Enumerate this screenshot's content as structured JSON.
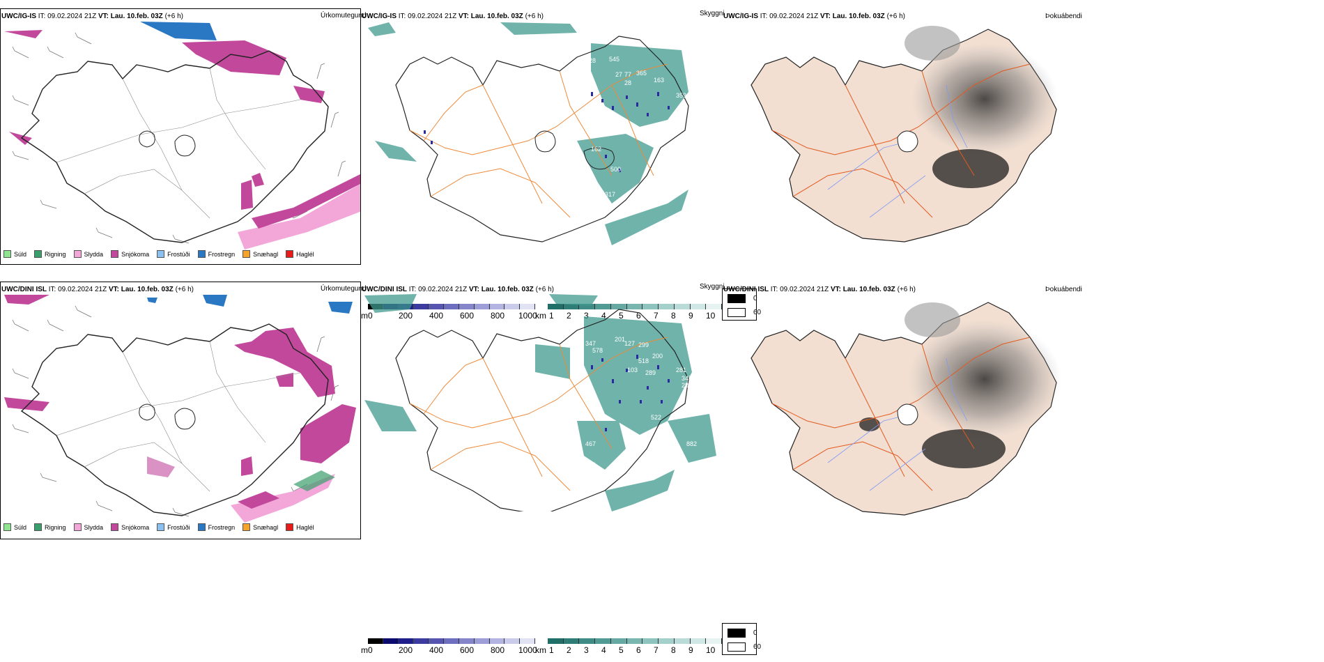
{
  "rows": [
    {
      "header": {
        "model": "UWC/IG-IS",
        "it": "IT: 09.02.2024 21Z",
        "vt_label": "VT:",
        "vt": "Lau. 10.feb. 03Z",
        "lead": "(+6 h)"
      },
      "precip_title": "Úrkomutegund",
      "vis_title": "Skyggni",
      "fog_title": "Þokuábendi",
      "vis_numbers": [
        "228",
        "545",
        "27",
        "77",
        "365",
        "28",
        "163",
        "359",
        "162",
        "500",
        "317"
      ]
    },
    {
      "header": {
        "model": "UWC/DINI ISL",
        "it": "IT: 09.02.2024 21Z",
        "vt_label": "VT:",
        "vt": "Lau. 10.feb. 03Z",
        "lead": "(+6 h)"
      },
      "precip_title": "Úrkomutegund",
      "vis_title": "Skyggni",
      "fog_title": "Þokuábendi",
      "vis_numbers": [
        "347",
        "201",
        "127",
        "299",
        "578",
        "200",
        "518",
        "103",
        "289",
        "281",
        "347",
        "289",
        "522",
        "467",
        "170",
        "882"
      ]
    }
  ],
  "precip_legend": [
    {
      "label": "Súld",
      "color": "#8fe58f"
    },
    {
      "label": "Rigning",
      "color": "#3a9e6c"
    },
    {
      "label": "Slydda",
      "color": "#f3a7d9"
    },
    {
      "label": "Snjókoma",
      "color": "#c2489b"
    },
    {
      "label": "Frostúði",
      "color": "#8cc0f0"
    },
    {
      "label": "Frostregn",
      "color": "#2a78c4"
    },
    {
      "label": "Snæhagl",
      "color": "#f5a32a"
    },
    {
      "label": "Haglél",
      "color": "#e81a1a"
    }
  ],
  "vis_scale_m": {
    "unit": "m",
    "ticks": [
      "0",
      "200",
      "400",
      "600",
      "800",
      "1000"
    ],
    "colors": [
      "#000000",
      "#0b0b6e",
      "#1f1f8c",
      "#3c3ca0",
      "#5656b0",
      "#6e6ec0",
      "#8585cc",
      "#9d9dd8",
      "#b4b4e2",
      "#cbcbec",
      "#e2e2f5"
    ]
  },
  "vis_scale_km": {
    "unit": "km",
    "ticks": [
      "1",
      "2",
      "3",
      "4",
      "5",
      "6",
      "7",
      "8",
      "9",
      "10"
    ],
    "colors": [
      "#1f6e68",
      "#2e7d77",
      "#3f8c86",
      "#529a94",
      "#66a8a2",
      "#7ab6b0",
      "#8fc3be",
      "#a4d0cb",
      "#badcd8",
      "#d0e8e5",
      "#e6f3f1"
    ]
  },
  "fog_key": {
    "black_label": "0",
    "white_label": "60"
  },
  "colors": {
    "land_fog": "#f2dfd2",
    "roads": "#e35a1e",
    "vis_roads": "#ee8a3a",
    "rivers": "#7f9af2",
    "teal": "#3f9a8e"
  }
}
